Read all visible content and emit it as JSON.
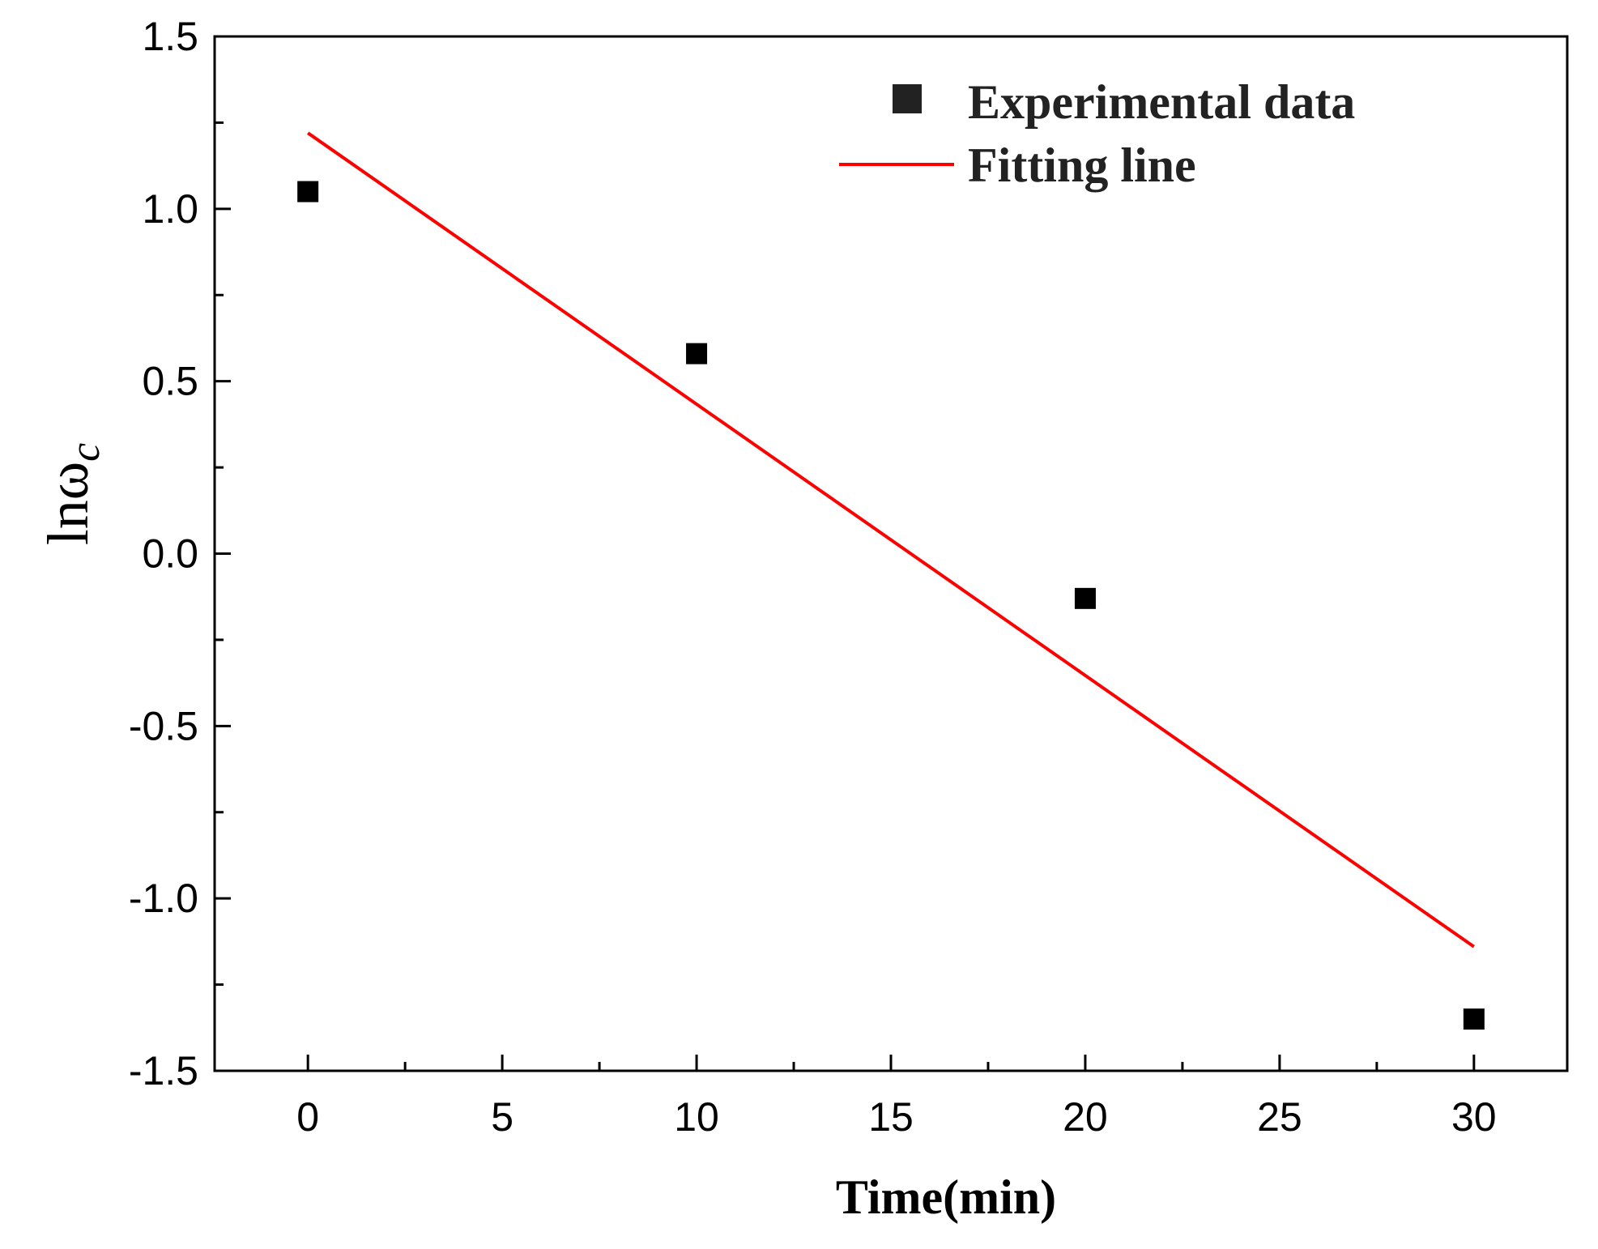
{
  "chart_data": {
    "type": "scatter",
    "title": "",
    "xlabel": "Time(min)",
    "ylabel": "lnω",
    "ylabel_subscript": "c",
    "xlim": [
      -2.4,
      32.4
    ],
    "ylim": [
      -1.5,
      1.5
    ],
    "x_ticks": [
      0,
      5,
      10,
      15,
      20,
      25,
      30
    ],
    "x_tick_labels": [
      "0",
      "5",
      "10",
      "15",
      "20",
      "25",
      "30"
    ],
    "x_minor_ticks": [
      2.5,
      7.5,
      12.5,
      17.5,
      22.5,
      27.5
    ],
    "y_ticks": [
      1.5,
      1.0,
      0.5,
      0.0,
      -0.5,
      -1.0,
      -1.5
    ],
    "y_tick_labels": [
      "1.5",
      "1.0",
      "0.5",
      "0.0",
      "-0.5",
      "-1.0",
      "-1.5"
    ],
    "y_minor_ticks": [
      1.25,
      0.75,
      0.25,
      -0.25,
      -0.75,
      -1.25
    ],
    "legend_position": "top-right",
    "series": [
      {
        "name": "Experimental data",
        "kind": "scatter",
        "marker": "square",
        "color": "#000000",
        "x": [
          0,
          10,
          20,
          30
        ],
        "y": [
          1.05,
          0.58,
          -0.13,
          -1.35
        ]
      },
      {
        "name": "Fitting line",
        "kind": "line",
        "color": "#ff0000",
        "x": [
          0,
          30
        ],
        "y": [
          1.22,
          -1.14
        ]
      }
    ]
  }
}
